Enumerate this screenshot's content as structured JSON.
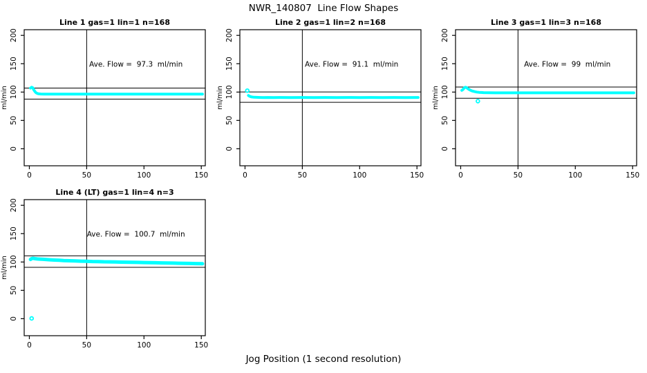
{
  "page": {
    "title": "NWR_140807  Line Flow Shapes",
    "x_axis_label": "Jog Position (1 second resolution)"
  },
  "colors": {
    "data_series": "#00FFFF",
    "axis": "#000000",
    "background": "#FFFFFF",
    "text": "#000000"
  },
  "chart_data": [
    {
      "type": "scatter",
      "title": "Line 1 gas=1 lin=1 n=168",
      "ylabel": "ml/min",
      "annotation": "Ave. Flow =  97.3  ml/min",
      "annotation_pos": [
        93,
        150
      ],
      "ave_flow_ml_min": 97.3,
      "n": 168,
      "x_ticks": [
        0,
        50,
        100,
        150
      ],
      "y_ticks": [
        0,
        50,
        100,
        150,
        200
      ],
      "xlim": [
        -4.5,
        153.5
      ],
      "ylim": [
        -30,
        210
      ],
      "vline_x": 50,
      "hlines": [
        107.0,
        87.6
      ],
      "band_thickness_px": 4,
      "points": [
        [
          1,
          107
        ],
        [
          2,
          108.5
        ],
        [
          3,
          107.5
        ],
        [
          4,
          103.5
        ],
        [
          5,
          100.5
        ],
        [
          6,
          98.5
        ],
        [
          7,
          97.5
        ],
        [
          8,
          97
        ],
        [
          10,
          96.6
        ],
        [
          13,
          96.4
        ],
        [
          16,
          96.3
        ],
        [
          20,
          96.4
        ],
        [
          25,
          96.3
        ],
        [
          30,
          96.4
        ],
        [
          35,
          96.3
        ],
        [
          40,
          96.4
        ],
        [
          45,
          96.3
        ],
        [
          50,
          96.4
        ],
        [
          55,
          96.3
        ],
        [
          60,
          96.4
        ],
        [
          65,
          96.3
        ],
        [
          70,
          96.4
        ],
        [
          75,
          96.3
        ],
        [
          80,
          96.4
        ],
        [
          85,
          96.3
        ],
        [
          90,
          96.4
        ],
        [
          95,
          96.3
        ],
        [
          100,
          96.4
        ],
        [
          105,
          96.3
        ],
        [
          110,
          96.4
        ],
        [
          115,
          96.3
        ],
        [
          120,
          96.4
        ],
        [
          125,
          96.3
        ],
        [
          130,
          96.4
        ],
        [
          135,
          96.3
        ],
        [
          140,
          96.4
        ],
        [
          145,
          96.3
        ],
        [
          151,
          96.5
        ]
      ],
      "outliers": []
    },
    {
      "type": "scatter",
      "title": "Line 2 gas=1 lin=2 n=168",
      "ylabel": "ml/min",
      "annotation": "Ave. Flow =  91.1  ml/min",
      "annotation_pos": [
        93,
        150
      ],
      "ave_flow_ml_min": 91.1,
      "n": 168,
      "x_ticks": [
        0,
        50,
        100,
        150
      ],
      "y_ticks": [
        0,
        50,
        100,
        150,
        200
      ],
      "xlim": [
        -4.5,
        153.5
      ],
      "ylim": [
        -30,
        210
      ],
      "vline_x": 50,
      "hlines": [
        100.2,
        82.0
      ],
      "band_thickness_px": 4,
      "points": [
        [
          3,
          94
        ],
        [
          4,
          92.5
        ],
        [
          5,
          91.8
        ],
        [
          6,
          91.3
        ],
        [
          8,
          90.9
        ],
        [
          10,
          90.7
        ],
        [
          13,
          90.5
        ],
        [
          16,
          90.4
        ],
        [
          20,
          90.5
        ],
        [
          25,
          90.4
        ],
        [
          30,
          90.5
        ],
        [
          40,
          90.4
        ],
        [
          50,
          90.5
        ],
        [
          60,
          90.4
        ],
        [
          70,
          90.5
        ],
        [
          80,
          90.4
        ],
        [
          90,
          90.5
        ],
        [
          100,
          90.4
        ],
        [
          110,
          90.5
        ],
        [
          120,
          90.4
        ],
        [
          130,
          90.5
        ],
        [
          140,
          90.4
        ],
        [
          151,
          90.5
        ]
      ],
      "outliers": [
        [
          2,
          102.5
        ]
      ]
    },
    {
      "type": "scatter",
      "title": "Line 3 gas=1 lin=3 n=168",
      "ylabel": "ml/min",
      "annotation": "Ave. Flow =  99  ml/min",
      "annotation_pos": [
        93,
        150
      ],
      "ave_flow_ml_min": 99,
      "n": 168,
      "x_ticks": [
        0,
        50,
        100,
        150
      ],
      "y_ticks": [
        0,
        50,
        100,
        150,
        200
      ],
      "xlim": [
        -4.5,
        153.5
      ],
      "ylim": [
        -30,
        210
      ],
      "vline_x": 50,
      "hlines": [
        108.9,
        89.1
      ],
      "band_thickness_px": 4,
      "points": [
        [
          1,
          103
        ],
        [
          2,
          104.5
        ],
        [
          3,
          107
        ],
        [
          4,
          108.5
        ],
        [
          5,
          108
        ],
        [
          6,
          106.5
        ],
        [
          7,
          105
        ],
        [
          8,
          103.8
        ],
        [
          9,
          102.8
        ],
        [
          10,
          102
        ],
        [
          12,
          100.8
        ],
        [
          14,
          100
        ],
        [
          16,
          99.5
        ],
        [
          18,
          99.2
        ],
        [
          20,
          99
        ],
        [
          25,
          98.8
        ],
        [
          30,
          98.7
        ],
        [
          40,
          98.6
        ],
        [
          50,
          98.7
        ],
        [
          60,
          98.6
        ],
        [
          70,
          98.7
        ],
        [
          80,
          98.6
        ],
        [
          90,
          98.7
        ],
        [
          100,
          98.6
        ],
        [
          110,
          98.7
        ],
        [
          120,
          98.6
        ],
        [
          130,
          98.7
        ],
        [
          140,
          98.6
        ],
        [
          151,
          98.7
        ]
      ],
      "outliers": [
        [
          15,
          84
        ]
      ]
    },
    {
      "type": "scatter",
      "title": "Line 4 (LT) gas=1 lin=4 n=3",
      "ylabel": "ml/min",
      "annotation": "Ave. Flow =  100.7  ml/min",
      "annotation_pos": [
        93,
        150
      ],
      "ave_flow_ml_min": 100.7,
      "n": 3,
      "x_ticks": [
        0,
        50,
        100,
        150
      ],
      "y_ticks": [
        0,
        50,
        100,
        150,
        200
      ],
      "xlim": [
        -4.5,
        153.5
      ],
      "ylim": [
        -30,
        210
      ],
      "vline_x": 50,
      "hlines": [
        110.8,
        90.6
      ],
      "band_thickness_px": 5,
      "points": [
        [
          1,
          104.5
        ],
        [
          2,
          106
        ],
        [
          3,
          106.5
        ],
        [
          4,
          106.2
        ],
        [
          5,
          105.8
        ],
        [
          7,
          105.4
        ],
        [
          9,
          105.1
        ],
        [
          12,
          104.7
        ],
        [
          15,
          104.3
        ],
        [
          18,
          103.9
        ],
        [
          22,
          103.4
        ],
        [
          26,
          103
        ],
        [
          30,
          102.6
        ],
        [
          35,
          102.2
        ],
        [
          40,
          101.8
        ],
        [
          45,
          101.5
        ],
        [
          50,
          101.2
        ],
        [
          55,
          100.9
        ],
        [
          60,
          100.7
        ],
        [
          65,
          100.4
        ],
        [
          70,
          100.2
        ],
        [
          75,
          100
        ],
        [
          80,
          99.8
        ],
        [
          85,
          99.6
        ],
        [
          90,
          99.4
        ],
        [
          95,
          99.2
        ],
        [
          100,
          99
        ],
        [
          105,
          98.8
        ],
        [
          110,
          98.6
        ],
        [
          115,
          98.4
        ],
        [
          120,
          98.2
        ],
        [
          125,
          98
        ],
        [
          130,
          97.8
        ],
        [
          135,
          97.6
        ],
        [
          140,
          97.4
        ],
        [
          145,
          97.2
        ],
        [
          151,
          97
        ]
      ],
      "outliers": [
        [
          2,
          0.5
        ]
      ]
    }
  ]
}
